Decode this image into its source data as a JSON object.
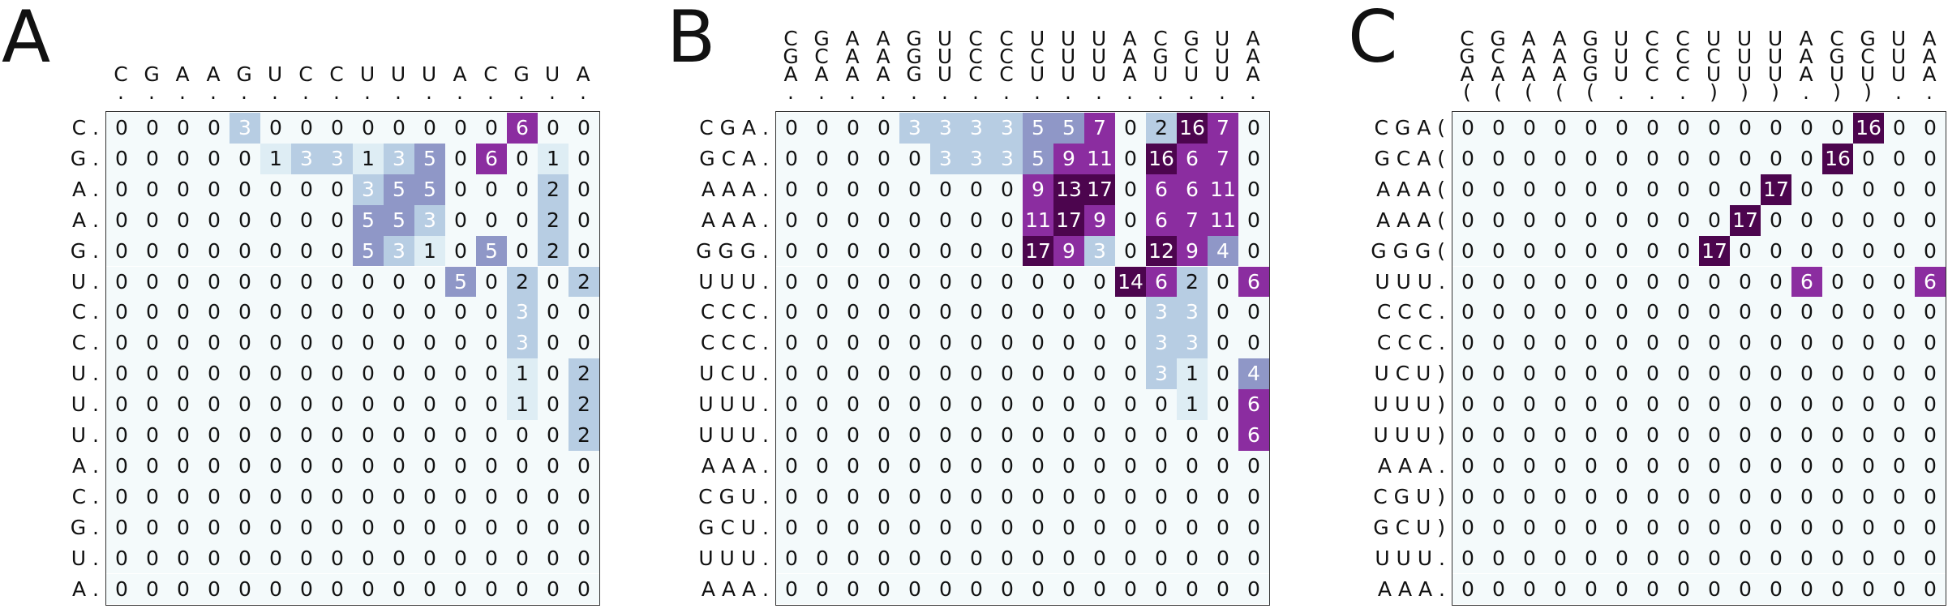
{
  "colors": {
    "zero": "#f4fafb",
    "low": "#deedf4",
    "mid": "#b7cde3",
    "midhigh": "#8f97c7",
    "high": "#8b2da0",
    "max": "#4c054e"
  },
  "panels": [
    {
      "label": "A",
      "headers": [
        "C",
        "G",
        "A",
        "A",
        "G",
        "U",
        "C",
        "C",
        "U",
        "U",
        "U",
        "A",
        "C",
        "G",
        "U",
        "A",
        ".",
        ".",
        ".",
        ".",
        ".",
        ".",
        ".",
        ".",
        ".",
        ".",
        ".",
        ".",
        ".",
        ".",
        ".",
        "."
      ],
      "header_rows": 2,
      "row_labels": [
        "C .",
        "G .",
        "A .",
        "A .",
        "G .",
        "U .",
        "C .",
        "C .",
        "U .",
        "U .",
        "U .",
        "A .",
        "C .",
        "G .",
        "U .",
        "A ."
      ],
      "matrix": [
        [
          0,
          0,
          0,
          0,
          3,
          0,
          0,
          0,
          0,
          0,
          0,
          0,
          0,
          6,
          0,
          0
        ],
        [
          0,
          0,
          0,
          0,
          0,
          1,
          3,
          3,
          1,
          3,
          5,
          0,
          6,
          0,
          1,
          0
        ],
        [
          0,
          0,
          0,
          0,
          0,
          0,
          0,
          0,
          3,
          5,
          5,
          0,
          0,
          0,
          2,
          0
        ],
        [
          0,
          0,
          0,
          0,
          0,
          0,
          0,
          0,
          5,
          5,
          3,
          0,
          0,
          0,
          2,
          0
        ],
        [
          0,
          0,
          0,
          0,
          0,
          0,
          0,
          0,
          5,
          3,
          1,
          0,
          5,
          0,
          2,
          0
        ],
        [
          0,
          0,
          0,
          0,
          0,
          0,
          0,
          0,
          0,
          0,
          0,
          5,
          0,
          2,
          0,
          2
        ],
        [
          0,
          0,
          0,
          0,
          0,
          0,
          0,
          0,
          0,
          0,
          0,
          0,
          0,
          3,
          0,
          0
        ],
        [
          0,
          0,
          0,
          0,
          0,
          0,
          0,
          0,
          0,
          0,
          0,
          0,
          0,
          3,
          0,
          0
        ],
        [
          0,
          0,
          0,
          0,
          0,
          0,
          0,
          0,
          0,
          0,
          0,
          0,
          0,
          1,
          0,
          2
        ],
        [
          0,
          0,
          0,
          0,
          0,
          0,
          0,
          0,
          0,
          0,
          0,
          0,
          0,
          1,
          0,
          2
        ],
        [
          0,
          0,
          0,
          0,
          0,
          0,
          0,
          0,
          0,
          0,
          0,
          0,
          0,
          0,
          0,
          2
        ],
        [
          0,
          0,
          0,
          0,
          0,
          0,
          0,
          0,
          0,
          0,
          0,
          0,
          0,
          0,
          0,
          0
        ],
        [
          0,
          0,
          0,
          0,
          0,
          0,
          0,
          0,
          0,
          0,
          0,
          0,
          0,
          0,
          0,
          0
        ],
        [
          0,
          0,
          0,
          0,
          0,
          0,
          0,
          0,
          0,
          0,
          0,
          0,
          0,
          0,
          0,
          0
        ],
        [
          0,
          0,
          0,
          0,
          0,
          0,
          0,
          0,
          0,
          0,
          0,
          0,
          0,
          0,
          0,
          0
        ],
        [
          0,
          0,
          0,
          0,
          0,
          0,
          0,
          0,
          0,
          0,
          0,
          0,
          0,
          0,
          0,
          0
        ]
      ]
    },
    {
      "label": "B",
      "headers": [
        "C",
        "G",
        "A",
        "A",
        "G",
        "U",
        "C",
        "C",
        "U",
        "U",
        "U",
        "A",
        "C",
        "G",
        "U",
        "A",
        "G",
        "C",
        "A",
        "A",
        "G",
        "U",
        "C",
        "C",
        "C",
        "U",
        "U",
        "A",
        "G",
        "C",
        "U",
        "A",
        "A",
        "A",
        "A",
        "A",
        "G",
        "U",
        "C",
        "C",
        "U",
        "U",
        "U",
        "A",
        "U",
        "U",
        "U",
        "A",
        ".",
        ".",
        ".",
        ".",
        ".",
        ".",
        ".",
        ".",
        ".",
        ".",
        ".",
        ".",
        ".",
        ".",
        ".",
        "."
      ],
      "header_rows": 4,
      "row_labels": [
        "C G A .",
        "G C A .",
        "A A A .",
        "A A A .",
        "G G G .",
        "U U U .",
        "C C C .",
        "C C C .",
        "U C U .",
        "U U U .",
        "U U U .",
        "A A A .",
        "C G U .",
        "G C U .",
        "U U U .",
        "A A A ."
      ],
      "matrix": [
        [
          0,
          0,
          0,
          0,
          3,
          3,
          3,
          3,
          5,
          5,
          7,
          0,
          2,
          16,
          7,
          0
        ],
        [
          0,
          0,
          0,
          0,
          0,
          3,
          3,
          3,
          5,
          9,
          11,
          0,
          16,
          6,
          7,
          0
        ],
        [
          0,
          0,
          0,
          0,
          0,
          0,
          0,
          0,
          9,
          13,
          17,
          0,
          6,
          6,
          11,
          0
        ],
        [
          0,
          0,
          0,
          0,
          0,
          0,
          0,
          0,
          11,
          17,
          9,
          0,
          6,
          7,
          11,
          0
        ],
        [
          0,
          0,
          0,
          0,
          0,
          0,
          0,
          0,
          17,
          9,
          3,
          0,
          12,
          9,
          4,
          0
        ],
        [
          0,
          0,
          0,
          0,
          0,
          0,
          0,
          0,
          0,
          0,
          0,
          14,
          6,
          2,
          0,
          6
        ],
        [
          0,
          0,
          0,
          0,
          0,
          0,
          0,
          0,
          0,
          0,
          0,
          0,
          3,
          3,
          0,
          0
        ],
        [
          0,
          0,
          0,
          0,
          0,
          0,
          0,
          0,
          0,
          0,
          0,
          0,
          3,
          3,
          0,
          0
        ],
        [
          0,
          0,
          0,
          0,
          0,
          0,
          0,
          0,
          0,
          0,
          0,
          0,
          3,
          1,
          0,
          4
        ],
        [
          0,
          0,
          0,
          0,
          0,
          0,
          0,
          0,
          0,
          0,
          0,
          0,
          0,
          1,
          0,
          6
        ],
        [
          0,
          0,
          0,
          0,
          0,
          0,
          0,
          0,
          0,
          0,
          0,
          0,
          0,
          0,
          0,
          6
        ],
        [
          0,
          0,
          0,
          0,
          0,
          0,
          0,
          0,
          0,
          0,
          0,
          0,
          0,
          0,
          0,
          0
        ],
        [
          0,
          0,
          0,
          0,
          0,
          0,
          0,
          0,
          0,
          0,
          0,
          0,
          0,
          0,
          0,
          0
        ],
        [
          0,
          0,
          0,
          0,
          0,
          0,
          0,
          0,
          0,
          0,
          0,
          0,
          0,
          0,
          0,
          0
        ],
        [
          0,
          0,
          0,
          0,
          0,
          0,
          0,
          0,
          0,
          0,
          0,
          0,
          0,
          0,
          0,
          0
        ],
        [
          0,
          0,
          0,
          0,
          0,
          0,
          0,
          0,
          0,
          0,
          0,
          0,
          0,
          0,
          0,
          0
        ]
      ]
    },
    {
      "label": "C",
      "headers": [
        "C",
        "G",
        "A",
        "A",
        "G",
        "U",
        "C",
        "C",
        "U",
        "U",
        "U",
        "A",
        "C",
        "G",
        "U",
        "A",
        "G",
        "C",
        "A",
        "A",
        "G",
        "U",
        "C",
        "C",
        "C",
        "U",
        "U",
        "A",
        "G",
        "C",
        "U",
        "A",
        "A",
        "A",
        "A",
        "A",
        "G",
        "U",
        "C",
        "C",
        "U",
        "U",
        "U",
        "A",
        "U",
        "U",
        "U",
        "A",
        "(",
        "(",
        "(",
        "(",
        "(",
        ".",
        ".",
        ".",
        ")",
        ")",
        ")",
        ".",
        ")",
        ")",
        ".",
        "."
      ],
      "header_rows": 4,
      "row_labels": [
        "C G A (",
        "G C A (",
        "A A A (",
        "A A A (",
        "G G G (",
        "U U U .",
        "C C C .",
        "C C C .",
        "U C U )",
        "U U U )",
        "U U U )",
        "A A A .",
        "C G U )",
        "G C U )",
        "U U U .",
        "A A A ."
      ],
      "matrix": [
        [
          0,
          0,
          0,
          0,
          0,
          0,
          0,
          0,
          0,
          0,
          0,
          0,
          0,
          16,
          0,
          0
        ],
        [
          0,
          0,
          0,
          0,
          0,
          0,
          0,
          0,
          0,
          0,
          0,
          0,
          16,
          0,
          0,
          0
        ],
        [
          0,
          0,
          0,
          0,
          0,
          0,
          0,
          0,
          0,
          0,
          17,
          0,
          0,
          0,
          0,
          0
        ],
        [
          0,
          0,
          0,
          0,
          0,
          0,
          0,
          0,
          0,
          17,
          0,
          0,
          0,
          0,
          0,
          0
        ],
        [
          0,
          0,
          0,
          0,
          0,
          0,
          0,
          0,
          17,
          0,
          0,
          0,
          0,
          0,
          0,
          0
        ],
        [
          0,
          0,
          0,
          0,
          0,
          0,
          0,
          0,
          0,
          0,
          0,
          6,
          0,
          0,
          0,
          6
        ],
        [
          0,
          0,
          0,
          0,
          0,
          0,
          0,
          0,
          0,
          0,
          0,
          0,
          0,
          0,
          0,
          0
        ],
        [
          0,
          0,
          0,
          0,
          0,
          0,
          0,
          0,
          0,
          0,
          0,
          0,
          0,
          0,
          0,
          0
        ],
        [
          0,
          0,
          0,
          0,
          0,
          0,
          0,
          0,
          0,
          0,
          0,
          0,
          0,
          0,
          0,
          0
        ],
        [
          0,
          0,
          0,
          0,
          0,
          0,
          0,
          0,
          0,
          0,
          0,
          0,
          0,
          0,
          0,
          0
        ],
        [
          0,
          0,
          0,
          0,
          0,
          0,
          0,
          0,
          0,
          0,
          0,
          0,
          0,
          0,
          0,
          0
        ],
        [
          0,
          0,
          0,
          0,
          0,
          0,
          0,
          0,
          0,
          0,
          0,
          0,
          0,
          0,
          0,
          0
        ],
        [
          0,
          0,
          0,
          0,
          0,
          0,
          0,
          0,
          0,
          0,
          0,
          0,
          0,
          0,
          0,
          0
        ],
        [
          0,
          0,
          0,
          0,
          0,
          0,
          0,
          0,
          0,
          0,
          0,
          0,
          0,
          0,
          0,
          0
        ],
        [
          0,
          0,
          0,
          0,
          0,
          0,
          0,
          0,
          0,
          0,
          0,
          0,
          0,
          0,
          0,
          0
        ],
        [
          0,
          0,
          0,
          0,
          0,
          0,
          0,
          0,
          0,
          0,
          0,
          0,
          0,
          0,
          0,
          0
        ]
      ]
    }
  ]
}
